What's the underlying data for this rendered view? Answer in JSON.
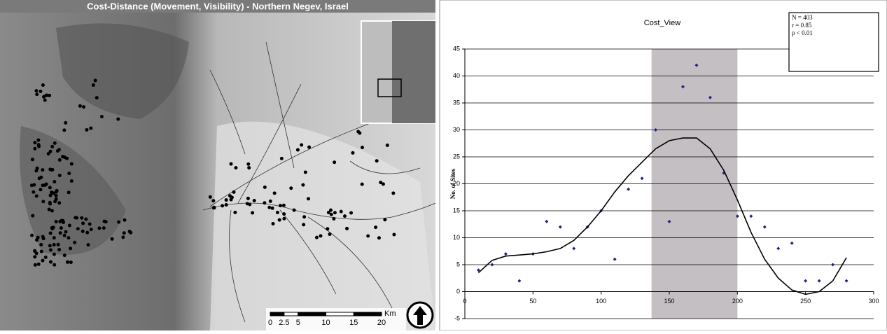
{
  "map": {
    "title": "Cost-Distance (Movement, Visibility) - Northern Negev, Israel",
    "scale_labels": [
      "0",
      "2.5",
      "5",
      "10",
      "15",
      "20"
    ],
    "scale_unit": "Km"
  },
  "chart_data": {
    "type": "scatter",
    "title": "Cost_View",
    "y_label": "No. of Sites",
    "annotations": [
      "N = 403",
      "r = 0.85",
      "p < 0.01"
    ],
    "xlim": [
      0,
      300
    ],
    "xticks": [
      0,
      50,
      100,
      150,
      200,
      250,
      300
    ],
    "ylim": [
      -5,
      45
    ],
    "yticks": [
      -5,
      0,
      5,
      10,
      15,
      20,
      25,
      30,
      35,
      40,
      45
    ],
    "grid": true,
    "highlight": [
      137,
      200
    ],
    "highlight_color": "#c3bfc3",
    "series": [
      {
        "type": "scatter",
        "color": "#22228a",
        "x": [
          10,
          20,
          30,
          40,
          50,
          60,
          70,
          80,
          90,
          100,
          110,
          120,
          130,
          140,
          150,
          160,
          170,
          180,
          190,
          200,
          210,
          220,
          230,
          240,
          250,
          260,
          270,
          280
        ],
        "values": [
          4,
          5,
          7,
          2,
          7,
          13,
          12,
          8,
          12,
          15,
          6,
          19,
          21,
          30,
          13,
          38,
          42,
          36,
          22,
          14,
          14,
          12,
          8,
          9,
          2,
          2,
          5,
          2
        ]
      },
      {
        "type": "line",
        "color": "#000000",
        "x": [
          10,
          20,
          30,
          40,
          50,
          60,
          70,
          80,
          90,
          100,
          110,
          120,
          130,
          140,
          150,
          160,
          170,
          180,
          190,
          200,
          210,
          220,
          230,
          240,
          250,
          260,
          270,
          280
        ],
        "values": [
          3.5,
          5.8,
          6.6,
          6.8,
          7,
          7.4,
          8,
          9.5,
          12,
          15,
          18.5,
          21.5,
          24,
          26.5,
          28,
          28.5,
          28.5,
          26.5,
          22.5,
          17,
          11,
          6,
          2.5,
          0.3,
          -0.5,
          0,
          2,
          6.3
        ]
      }
    ]
  }
}
